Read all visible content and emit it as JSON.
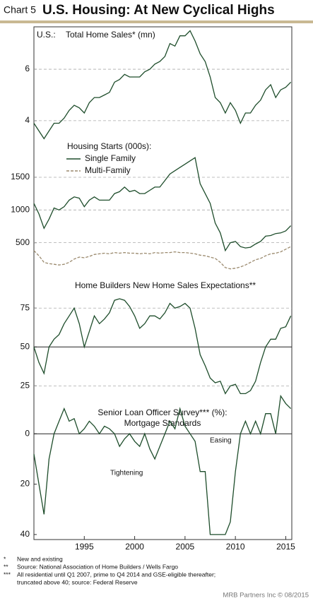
{
  "header": {
    "label": "Chart 5",
    "title": "U.S. Housing: At New Cyclical Highs"
  },
  "chart_data": [
    {
      "type": "line",
      "label": "U.S.:",
      "title": "Total Home Sales* (mn)",
      "color": "#1e4d2b",
      "x": [
        1990,
        1990.5,
        1991,
        1991.5,
        1992,
        1992.5,
        1993,
        1993.5,
        1994,
        1994.5,
        1995,
        1995.5,
        1996,
        1996.5,
        1997,
        1997.5,
        1998,
        1998.5,
        1999,
        1999.5,
        2000,
        2000.5,
        2001,
        2001.5,
        2002,
        2002.5,
        2003,
        2003.5,
        2004,
        2004.5,
        2005,
        2005.5,
        2006,
        2006.5,
        2007,
        2007.5,
        2008,
        2008.5,
        2009,
        2009.5,
        2010,
        2010.5,
        2011,
        2011.5,
        2012,
        2012.5,
        2013,
        2013.5,
        2014,
        2014.5,
        2015,
        2015.5
      ],
      "values": [
        3.9,
        3.6,
        3.3,
        3.6,
        3.9,
        3.9,
        4.1,
        4.4,
        4.6,
        4.5,
        4.3,
        4.7,
        4.9,
        4.9,
        5.0,
        5.1,
        5.5,
        5.6,
        5.8,
        5.7,
        5.7,
        5.7,
        5.9,
        6.0,
        6.2,
        6.3,
        6.5,
        7.0,
        6.9,
        7.3,
        7.3,
        7.5,
        7.1,
        6.6,
        6.3,
        5.7,
        4.9,
        4.7,
        4.3,
        4.7,
        4.4,
        3.9,
        4.3,
        4.3,
        4.6,
        4.8,
        5.2,
        5.4,
        4.9,
        5.2,
        5.3,
        5.5
      ],
      "xlim": [
        1990,
        2015.6
      ],
      "ylim": [
        3.2,
        7.65
      ],
      "yticks": [
        4,
        6
      ],
      "grid": true
    },
    {
      "type": "line",
      "title": "Housing Starts (000s):",
      "x": [
        1990,
        1990.5,
        1991,
        1991.5,
        1992,
        1992.5,
        1993,
        1993.5,
        1994,
        1994.5,
        1995,
        1995.5,
        1996,
        1996.5,
        1997,
        1997.5,
        1998,
        1998.5,
        1999,
        1999.5,
        2000,
        2000.5,
        2001,
        2001.5,
        2002,
        2002.5,
        2003,
        2003.5,
        2004,
        2004.5,
        2005,
        2005.5,
        2006,
        2006.5,
        2007,
        2007.5,
        2008,
        2008.5,
        2009,
        2009.5,
        2010,
        2010.5,
        2011,
        2011.5,
        2012,
        2012.5,
        2013,
        2013.5,
        2014,
        2014.5,
        2015,
        2015.5
      ],
      "series": [
        {
          "name": "Single Family",
          "color": "#1e4d2b",
          "dashed": false,
          "values": [
            1100,
            940,
            720,
            860,
            1030,
            1000,
            1050,
            1150,
            1200,
            1180,
            1050,
            1150,
            1200,
            1150,
            1150,
            1150,
            1250,
            1280,
            1350,
            1280,
            1300,
            1250,
            1250,
            1300,
            1350,
            1350,
            1450,
            1550,
            1600,
            1650,
            1700,
            1750,
            1800,
            1400,
            1250,
            1100,
            800,
            650,
            380,
            500,
            520,
            440,
            420,
            430,
            480,
            520,
            600,
            610,
            640,
            650,
            680,
            760
          ]
        },
        {
          "name": "Multi-Family",
          "color": "#9b8a6e",
          "dashed": true,
          "values": [
            380,
            300,
            200,
            180,
            170,
            160,
            170,
            200,
            250,
            280,
            270,
            290,
            320,
            330,
            340,
            330,
            350,
            340,
            350,
            340,
            340,
            330,
            340,
            330,
            350,
            340,
            350,
            350,
            360,
            350,
            350,
            340,
            330,
            310,
            300,
            280,
            260,
            200,
            120,
            100,
            110,
            130,
            160,
            200,
            240,
            260,
            300,
            330,
            340,
            360,
            400,
            440
          ]
        }
      ],
      "xlim": [
        1990,
        2015.6
      ],
      "ylim": [
        0,
        2050
      ],
      "yticks": [
        500,
        1000,
        1500
      ],
      "grid": true
    },
    {
      "type": "line",
      "title": "Home Builders New Home Sales Expectations**",
      "color": "#1e4d2b",
      "x": [
        1990,
        1990.5,
        1991,
        1991.5,
        1992,
        1992.5,
        1993,
        1993.5,
        1994,
        1994.5,
        1995,
        1995.5,
        1996,
        1996.5,
        1997,
        1997.5,
        1998,
        1998.5,
        1999,
        1999.5,
        2000,
        2000.5,
        2001,
        2001.5,
        2002,
        2002.5,
        2003,
        2003.5,
        2004,
        2004.5,
        2005,
        2005.5,
        2006,
        2006.5,
        2007,
        2007.5,
        2008,
        2008.5,
        2009,
        2009.5,
        2010,
        2010.5,
        2011,
        2011.5,
        2012,
        2012.5,
        2013,
        2013.5,
        2014,
        2014.5,
        2015,
        2015.5
      ],
      "values": [
        50,
        40,
        33,
        50,
        55,
        58,
        65,
        70,
        75,
        65,
        50,
        60,
        70,
        65,
        68,
        72,
        80,
        81,
        80,
        76,
        70,
        62,
        65,
        70,
        70,
        68,
        72,
        78,
        75,
        76,
        78,
        75,
        62,
        45,
        38,
        30,
        27,
        28,
        20,
        25,
        26,
        20,
        20,
        22,
        28,
        40,
        50,
        55,
        55,
        62,
        63,
        70
      ],
      "xlim": [
        1990,
        2015.6
      ],
      "ylim": [
        12,
        96
      ],
      "yticks": [
        25,
        50,
        75
      ],
      "grid": true,
      "hline": 50
    },
    {
      "type": "line",
      "title": "Senior Loan Officer Survey*** (%):",
      "subtitle": "Mortgage Standards",
      "color": "#1e4d2b",
      "annotations": [
        "Easing",
        "Tightening"
      ],
      "x": [
        1990,
        1990.5,
        1991,
        1991.5,
        1992,
        1992.5,
        1993,
        1993.5,
        1994,
        1994.5,
        1995,
        1995.5,
        1996,
        1996.5,
        1997,
        1997.5,
        1998,
        1998.5,
        1999,
        1999.5,
        2000,
        2000.5,
        2001,
        2001.5,
        2002,
        2002.5,
        2003,
        2003.5,
        2004,
        2004.5,
        2005,
        2005.5,
        2006,
        2006.5,
        2007,
        2007.5,
        2008,
        2008.5,
        2009,
        2009.5,
        2010,
        2010.5,
        2011,
        2011.5,
        2012,
        2012.5,
        2013,
        2013.5,
        2014,
        2014.5,
        2015,
        2015.5
      ],
      "values": [
        8,
        20,
        32,
        10,
        0,
        -5,
        -10,
        -5,
        -6,
        0,
        -2,
        -5,
        -3,
        0,
        -3,
        -2,
        0,
        5,
        2,
        0,
        3,
        5,
        0,
        6,
        10,
        5,
        0,
        -5,
        -2,
        -10,
        -3,
        0,
        3,
        15,
        15,
        40,
        40,
        40,
        40,
        35,
        15,
        0,
        -5,
        0,
        -5,
        0,
        -8,
        -8,
        0,
        -15,
        -12,
        -10
      ],
      "xlim": [
        1990,
        2015.6
      ],
      "ylim": [
        -11,
        42
      ],
      "inverted": true,
      "yticks": [
        0,
        20,
        40
      ],
      "hline": 0,
      "xticks": [
        1995,
        2000,
        2005,
        2010,
        2015
      ]
    }
  ],
  "footnotes": [
    {
      "mark": "*",
      "lines": [
        "New and existing"
      ]
    },
    {
      "mark": "**",
      "lines": [
        "Source: National Association of Home Builders / Wells Fargo"
      ]
    },
    {
      "mark": "***",
      "lines": [
        "All residential until Q1 2007, prime to Q4 2014 and GSE-eligible thereafter;",
        "truncated above 40; source: Federal Reserve"
      ]
    }
  ],
  "credit": "MRB Partners Inc © 08/2015"
}
